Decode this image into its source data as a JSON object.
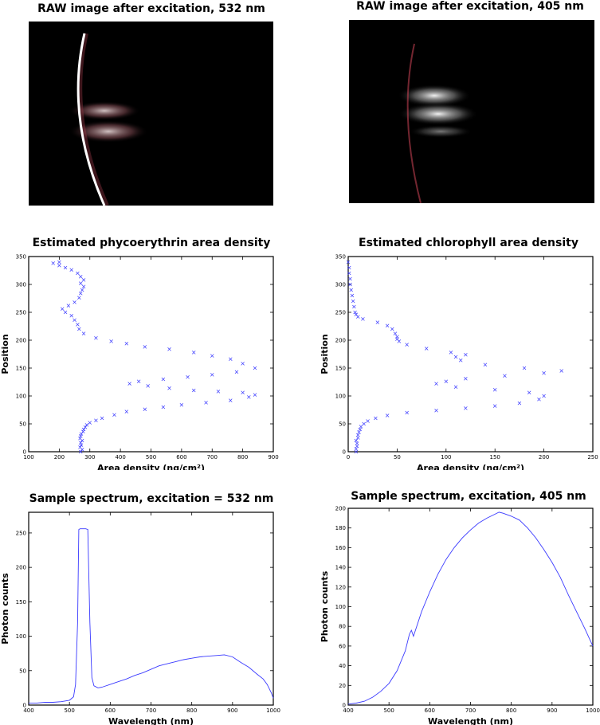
{
  "raw_532": {
    "title": "RAW image after excitation, 532 nm",
    "colors": {
      "background": "#000000",
      "arc": "#ffffff",
      "tint": "#c0606a"
    }
  },
  "raw_405": {
    "title": "RAW image after excitation, 405 nm",
    "colors": {
      "background": "#000000",
      "arc": "#c04050"
    }
  },
  "marker_color": "#3a3aff",
  "chart_data": [
    {
      "id": "phyco",
      "type": "scatter",
      "title": "Estimated phycoerythrin area density",
      "xlabel": "Area density (ng/cm²)",
      "ylabel": "Position",
      "xlim": [
        100,
        900
      ],
      "ylim": [
        0,
        350
      ],
      "xticks": [
        100,
        200,
        300,
        400,
        500,
        600,
        700,
        800,
        900
      ],
      "yticks": [
        0,
        50,
        100,
        150,
        200,
        250,
        300,
        350
      ],
      "points": [
        [
          270,
          0
        ],
        [
          275,
          4
        ],
        [
          268,
          8
        ],
        [
          272,
          12
        ],
        [
          270,
          16
        ],
        [
          275,
          20
        ],
        [
          268,
          24
        ],
        [
          270,
          28
        ],
        [
          272,
          32
        ],
        [
          278,
          36
        ],
        [
          280,
          40
        ],
        [
          285,
          44
        ],
        [
          290,
          48
        ],
        [
          300,
          52
        ],
        [
          320,
          56
        ],
        [
          340,
          60
        ],
        [
          380,
          66
        ],
        [
          420,
          72
        ],
        [
          480,
          76
        ],
        [
          540,
          80
        ],
        [
          600,
          84
        ],
        [
          680,
          88
        ],
        [
          760,
          92
        ],
        [
          820,
          98
        ],
        [
          840,
          102
        ],
        [
          800,
          106
        ],
        [
          720,
          108
        ],
        [
          640,
          110
        ],
        [
          560,
          114
        ],
        [
          490,
          118
        ],
        [
          430,
          122
        ],
        [
          460,
          126
        ],
        [
          540,
          130
        ],
        [
          620,
          134
        ],
        [
          700,
          138
        ],
        [
          780,
          143
        ],
        [
          840,
          150
        ],
        [
          800,
          158
        ],
        [
          760,
          166
        ],
        [
          700,
          172
        ],
        [
          640,
          178
        ],
        [
          560,
          184
        ],
        [
          480,
          188
        ],
        [
          420,
          194
        ],
        [
          370,
          198
        ],
        [
          320,
          204
        ],
        [
          280,
          212
        ],
        [
          265,
          220
        ],
        [
          260,
          228
        ],
        [
          250,
          236
        ],
        [
          240,
          244
        ],
        [
          220,
          250
        ],
        [
          210,
          256
        ],
        [
          230,
          262
        ],
        [
          250,
          268
        ],
        [
          265,
          276
        ],
        [
          270,
          284
        ],
        [
          275,
          290
        ],
        [
          280,
          296
        ],
        [
          270,
          302
        ],
        [
          280,
          308
        ],
        [
          270,
          314
        ],
        [
          260,
          320
        ],
        [
          240,
          326
        ],
        [
          220,
          330
        ],
        [
          200,
          334
        ],
        [
          180,
          338
        ],
        [
          200,
          340
        ]
      ]
    },
    {
      "id": "chloro",
      "type": "scatter",
      "title": "Estimated chlorophyll area density",
      "xlabel": "Area density (ng/cm²)",
      "ylabel": "Position",
      "xlim": [
        0,
        250
      ],
      "ylim": [
        0,
        350
      ],
      "xticks": [
        0,
        50,
        100,
        150,
        200,
        250
      ],
      "yticks": [
        0,
        50,
        100,
        150,
        200,
        250,
        300,
        350
      ],
      "points": [
        [
          8,
          0
        ],
        [
          8,
          5
        ],
        [
          9,
          10
        ],
        [
          9,
          15
        ],
        [
          8,
          20
        ],
        [
          10,
          25
        ],
        [
          10,
          30
        ],
        [
          11,
          35
        ],
        [
          12,
          40
        ],
        [
          13,
          45
        ],
        [
          16,
          50
        ],
        [
          20,
          55
        ],
        [
          28,
          60
        ],
        [
          40,
          65
        ],
        [
          60,
          70
        ],
        [
          90,
          74
        ],
        [
          120,
          78
        ],
        [
          150,
          82
        ],
        [
          175,
          87
        ],
        [
          195,
          94
        ],
        [
          200,
          100
        ],
        [
          185,
          106
        ],
        [
          150,
          111
        ],
        [
          110,
          116
        ],
        [
          90,
          122
        ],
        [
          100,
          126
        ],
        [
          120,
          131
        ],
        [
          160,
          136
        ],
        [
          200,
          141
        ],
        [
          218,
          145
        ],
        [
          180,
          150
        ],
        [
          140,
          156
        ],
        [
          115,
          164
        ],
        [
          110,
          170
        ],
        [
          120,
          174
        ],
        [
          105,
          178
        ],
        [
          80,
          185
        ],
        [
          60,
          192
        ],
        [
          52,
          198
        ],
        [
          50,
          202
        ],
        [
          50,
          206
        ],
        [
          48,
          212
        ],
        [
          45,
          220
        ],
        [
          40,
          226
        ],
        [
          30,
          232
        ],
        [
          15,
          238
        ],
        [
          10,
          242
        ],
        [
          8,
          246
        ],
        [
          7,
          250
        ],
        [
          6,
          260
        ],
        [
          5,
          270
        ],
        [
          4,
          280
        ],
        [
          3,
          290
        ],
        [
          2,
          300
        ],
        [
          2,
          310
        ],
        [
          1,
          320
        ],
        [
          1,
          330
        ],
        [
          0,
          340
        ]
      ]
    },
    {
      "id": "spec532",
      "type": "line",
      "title": "Sample spectrum, excitation = 532 nm",
      "xlabel": "Wavelength (nm)",
      "ylabel": "Photon counts",
      "xlim": [
        400,
        1000
      ],
      "ylim": [
        0,
        280
      ],
      "xticks": [
        400,
        500,
        600,
        700,
        800,
        900,
        1000
      ],
      "yticks": [
        0,
        50,
        100,
        150,
        200,
        250
      ],
      "x": [
        400,
        420,
        440,
        460,
        480,
        500,
        510,
        515,
        520,
        523,
        526,
        530,
        540,
        545,
        550,
        555,
        560,
        570,
        580,
        600,
        620,
        640,
        660,
        680,
        700,
        720,
        740,
        760,
        780,
        800,
        820,
        840,
        860,
        880,
        900,
        920,
        940,
        960,
        975,
        985,
        995,
        1000
      ],
      "values": [
        3,
        3,
        4,
        4,
        5,
        7,
        12,
        30,
        120,
        255,
        256,
        256,
        256,
        255,
        120,
        40,
        28,
        25,
        26,
        30,
        34,
        38,
        43,
        47,
        52,
        57,
        60,
        63,
        66,
        68,
        70,
        71,
        72,
        73,
        70,
        62,
        55,
        45,
        38,
        30,
        18,
        10
      ]
    },
    {
      "id": "spec405",
      "type": "line",
      "title": "Sample spectrum, excitation, 405 nm",
      "xlabel": "Wavelength (nm)",
      "ylabel": "Photon counts",
      "xlim": [
        400,
        1000
      ],
      "ylim": [
        0,
        200
      ],
      "xticks": [
        400,
        500,
        600,
        700,
        800,
        900,
        1000
      ],
      "yticks": [
        0,
        20,
        40,
        60,
        80,
        100,
        120,
        140,
        160,
        180,
        200
      ],
      "x": [
        400,
        420,
        440,
        460,
        480,
        500,
        520,
        540,
        550,
        555,
        560,
        580,
        600,
        620,
        640,
        660,
        680,
        700,
        720,
        740,
        760,
        770,
        780,
        800,
        820,
        840,
        860,
        880,
        900,
        920,
        940,
        960,
        980,
        1000
      ],
      "values": [
        1,
        2,
        4,
        8,
        14,
        22,
        35,
        55,
        72,
        76,
        70,
        95,
        115,
        133,
        148,
        160,
        170,
        178,
        185,
        190,
        194,
        196,
        195,
        192,
        188,
        180,
        170,
        158,
        145,
        130,
        112,
        95,
        78,
        60
      ]
    }
  ]
}
